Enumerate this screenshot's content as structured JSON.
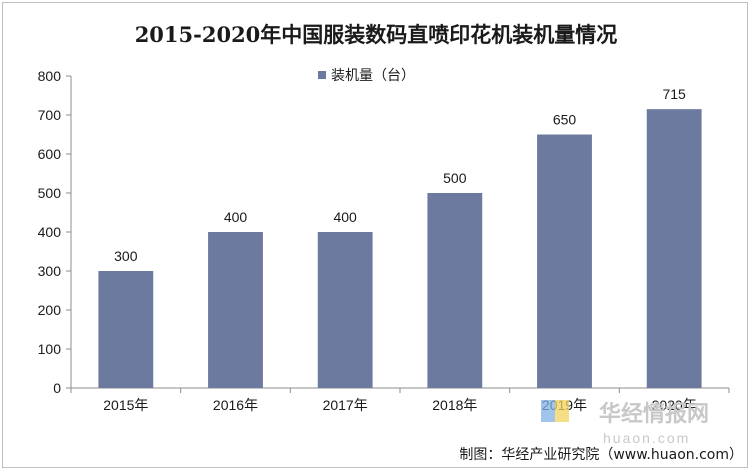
{
  "chart_data": {
    "type": "bar",
    "title": "2015-2020年中国服装数码直喷印花机装机量情况",
    "categories": [
      "2015年",
      "2016年",
      "2017年",
      "2018年",
      "2019年",
      "2020年"
    ],
    "series": [
      {
        "name": "装机量（台）",
        "values": [
          300,
          400,
          400,
          500,
          650,
          715
        ],
        "color": "#6b7a9e"
      }
    ],
    "data_labels": [
      "300",
      "400",
      "400",
      "500",
      "650",
      "715"
    ],
    "ylim": [
      0,
      800
    ],
    "yticks": [
      0,
      100,
      200,
      300,
      400,
      500,
      600,
      700,
      800
    ],
    "ytick_labels": [
      "0",
      "100",
      "200",
      "300",
      "400",
      "500",
      "600",
      "700",
      "800"
    ],
    "grid": false,
    "legend_position": "top-center",
    "xlabel": "",
    "ylabel": ""
  },
  "credit": "制图：华经产业研究院（www.huaon.com）",
  "watermark": {
    "logo_text": "华经情报网",
    "url": "huaon.com",
    "colors": [
      "#7fb2e5",
      "#f2d35e"
    ]
  }
}
